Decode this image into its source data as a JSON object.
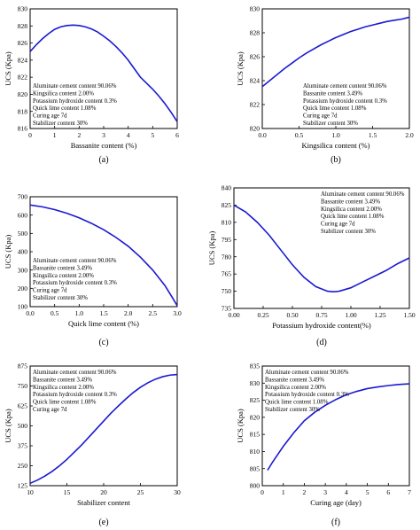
{
  "chart_data": [
    {
      "id": "a",
      "type": "line",
      "caption": "(a)",
      "xlabel": "Bassanite content (%)",
      "ylabel": "UCS (Kpa)",
      "xlim": [
        0,
        6
      ],
      "ylim": [
        816,
        830
      ],
      "xticks": [
        0,
        1,
        2,
        3,
        4,
        5,
        6
      ],
      "xtick_labels": [
        "0",
        "1",
        "2",
        "3",
        "4",
        "5",
        "6"
      ],
      "yticks": [
        816,
        818,
        820,
        822,
        824,
        826,
        828,
        830
      ],
      "ytick_labels": [
        "816",
        "818",
        "820",
        "822",
        "824",
        "826",
        "828",
        "830"
      ],
      "annotation_position": "lower-left",
      "annotations": [
        "Aluminate cement content 90.06%",
        "Kingsilica content 2.00%",
        "Potassium hydroxide content 0.3%",
        "Quick lime content 1.08%",
        "Curing age 7d",
        "Stabilizer content 30%"
      ],
      "series": [
        {
          "x": [
            0,
            0.25,
            0.5,
            0.75,
            1,
            1.25,
            1.5,
            1.75,
            2,
            2.25,
            2.5,
            2.75,
            3,
            3.25,
            3.5,
            3.75,
            4,
            4.25,
            4.5,
            4.75,
            5,
            5.25,
            5.5,
            5.75,
            6
          ],
          "y": [
            825.0,
            825.8,
            826.5,
            827.1,
            827.6,
            827.9,
            828.05,
            828.1,
            828.05,
            827.9,
            827.65,
            827.3,
            826.8,
            826.25,
            825.6,
            824.85,
            824.0,
            823.0,
            822.0,
            821.3,
            820.6,
            819.8,
            818.9,
            817.9,
            816.8
          ]
        }
      ]
    },
    {
      "id": "b",
      "type": "line",
      "caption": "(b)",
      "xlabel": "Kingsilica content (%)",
      "ylabel": "UCS (Kpa)",
      "xlim": [
        0,
        2
      ],
      "ylim": [
        820,
        830
      ],
      "xticks": [
        0,
        0.5,
        1,
        1.5,
        2
      ],
      "xtick_labels": [
        "0.0",
        "0.5",
        "1.0",
        "1.5",
        "2.0"
      ],
      "yticks": [
        820,
        822,
        824,
        826,
        828,
        830
      ],
      "ytick_labels": [
        "820",
        "822",
        "824",
        "826",
        "828",
        "830"
      ],
      "annotation_position": "lower-right",
      "annotations": [
        "Aluminate cement content 90.06%",
        "Bassanite content 3.49%",
        "Potassium hydroxide content 0.3%",
        "Quick lime content 1.08%",
        "Curing age 7d",
        "Stabilizer content 30%"
      ],
      "series": [
        {
          "x": [
            0,
            0.1,
            0.2,
            0.3,
            0.4,
            0.5,
            0.6,
            0.7,
            0.8,
            0.9,
            1.0,
            1.1,
            1.2,
            1.3,
            1.4,
            1.5,
            1.6,
            1.7,
            1.8,
            1.9,
            2.0
          ],
          "y": [
            823.5,
            824.0,
            824.5,
            825.0,
            825.45,
            825.9,
            826.3,
            826.65,
            827.0,
            827.3,
            827.6,
            827.85,
            828.1,
            828.3,
            828.5,
            828.65,
            828.8,
            828.95,
            829.05,
            829.15,
            829.3
          ]
        }
      ]
    },
    {
      "id": "c",
      "type": "line",
      "caption": "(c)",
      "xlabel": "Quick lime content (%)",
      "ylabel": "UCS (Kpa)",
      "xlim": [
        0,
        3
      ],
      "ylim": [
        100,
        700
      ],
      "xticks": [
        0,
        0.5,
        1,
        1.5,
        2,
        2.5,
        3
      ],
      "xtick_labels": [
        "0.0",
        "0.5",
        "1.0",
        "1.5",
        "2.0",
        "2.5",
        "3.0"
      ],
      "yticks": [
        100,
        200,
        300,
        400,
        500,
        600,
        700
      ],
      "ytick_labels": [
        "100",
        "200",
        "300",
        "400",
        "500",
        "600",
        "700"
      ],
      "annotation_position": "lower-left",
      "annotations": [
        "Aluminate cement content 90.06%",
        "Bassanite content 3.49%",
        "Kingsilica content 2.00%",
        "Potassium hydroxide content 0.3%",
        "Curing age 7d",
        "Stabilizer content 30%"
      ],
      "series": [
        {
          "x": [
            0,
            0.25,
            0.5,
            0.75,
            1.0,
            1.25,
            1.5,
            1.75,
            2.0,
            2.25,
            2.5,
            2.75,
            2.9,
            3.0
          ],
          "y": [
            655,
            645,
            630,
            610,
            585,
            555,
            520,
            478,
            430,
            370,
            300,
            215,
            150,
            105
          ]
        }
      ]
    },
    {
      "id": "d",
      "type": "line",
      "caption": "(d)",
      "xlabel": "Potassium hydroxide content(%)",
      "ylabel": "UCS (Kpa)",
      "xlim": [
        0,
        1.5
      ],
      "ylim": [
        735,
        840
      ],
      "xticks": [
        0,
        0.25,
        0.5,
        0.75,
        1.0,
        1.25,
        1.5
      ],
      "xtick_labels": [
        "0.00",
        "0.25",
        "0.50",
        "0.75",
        "1.00",
        "1.25",
        "1.50"
      ],
      "yticks": [
        735,
        750,
        765,
        780,
        795,
        810,
        825,
        840
      ],
      "ytick_labels": [
        "735",
        "750",
        "765",
        "780",
        "795",
        "810",
        "825",
        "840"
      ],
      "annotation_position": "upper-right",
      "annotations": [
        "Aluminate cement content 90.06%",
        "Bassanite content 3.49%",
        "Kingsilica content 2.00%",
        "Quick lime content 1.08%",
        "Curing age 7d",
        "Stabilizer content 30%"
      ],
      "series": [
        {
          "x": [
            0,
            0.1,
            0.2,
            0.3,
            0.4,
            0.5,
            0.6,
            0.7,
            0.8,
            0.85,
            0.9,
            1.0,
            1.1,
            1.2,
            1.3,
            1.4,
            1.5
          ],
          "y": [
            825,
            819,
            810,
            799,
            786,
            773,
            762,
            754,
            750,
            749.5,
            750,
            753,
            758,
            763,
            768,
            774,
            779
          ]
        }
      ]
    },
    {
      "id": "e",
      "type": "line",
      "caption": "(e)",
      "xlabel": "Stabilizer content",
      "ylabel": "UCS (Kpa)",
      "xlim": [
        10,
        30
      ],
      "ylim": [
        125,
        875
      ],
      "xticks": [
        10,
        15,
        20,
        25,
        30
      ],
      "xtick_labels": [
        "10",
        "15",
        "20",
        "25",
        "30"
      ],
      "yticks": [
        125,
        250,
        375,
        500,
        625,
        750,
        875
      ],
      "ytick_labels": [
        "125",
        "250",
        "375",
        "500",
        "625",
        "750",
        "875"
      ],
      "annotation_position": "upper-left",
      "annotations": [
        "Aluminate cement content 90.06%",
        "Bassanite content 3.49%",
        "Kingsilica content 2.00%",
        "Potassium hydroxide content 0.3%",
        "Quick lime content 1.08%",
        "Curing age 7d"
      ],
      "series": [
        {
          "x": [
            10,
            11,
            12,
            13,
            14,
            15,
            16,
            17,
            18,
            19,
            20,
            21,
            22,
            23,
            24,
            25,
            26,
            27,
            28,
            29,
            30
          ],
          "y": [
            140,
            160,
            185,
            215,
            250,
            290,
            335,
            380,
            430,
            480,
            530,
            580,
            625,
            668,
            708,
            742,
            770,
            792,
            808,
            818,
            822
          ]
        }
      ]
    },
    {
      "id": "f",
      "type": "line",
      "caption": "(f)",
      "xlabel": "Curing age (day)",
      "ylabel": "UCS (Kpa)",
      "xlim": [
        0,
        7
      ],
      "ylim": [
        800,
        835
      ],
      "xticks": [
        0,
        1,
        2,
        3,
        4,
        5,
        6,
        7
      ],
      "xtick_labels": [
        "0",
        "1",
        "2",
        "3",
        "4",
        "5",
        "6",
        "7"
      ],
      "yticks": [
        800,
        805,
        810,
        815,
        820,
        825,
        830,
        835
      ],
      "ytick_labels": [
        "800",
        "805",
        "810",
        "815",
        "820",
        "825",
        "830",
        "835"
      ],
      "annotation_position": "upper-left",
      "annotations": [
        "Aluminate cement content 90.06%",
        "Bassanite content 3.49%",
        "Kingsilica content 2.00%",
        "Potassium hydroxide content 0.3%",
        "Quick lime content 1.08%",
        "Stabilizer content 30%"
      ],
      "series": [
        {
          "x": [
            0.25,
            0.5,
            1,
            1.5,
            2,
            2.5,
            3,
            3.5,
            4,
            4.5,
            5,
            5.5,
            6,
            6.5,
            7
          ],
          "y": [
            804.5,
            807,
            811.5,
            815.5,
            819,
            821.5,
            823.5,
            825.2,
            826.6,
            827.6,
            828.4,
            828.9,
            829.3,
            829.6,
            829.8
          ]
        }
      ]
    }
  ]
}
